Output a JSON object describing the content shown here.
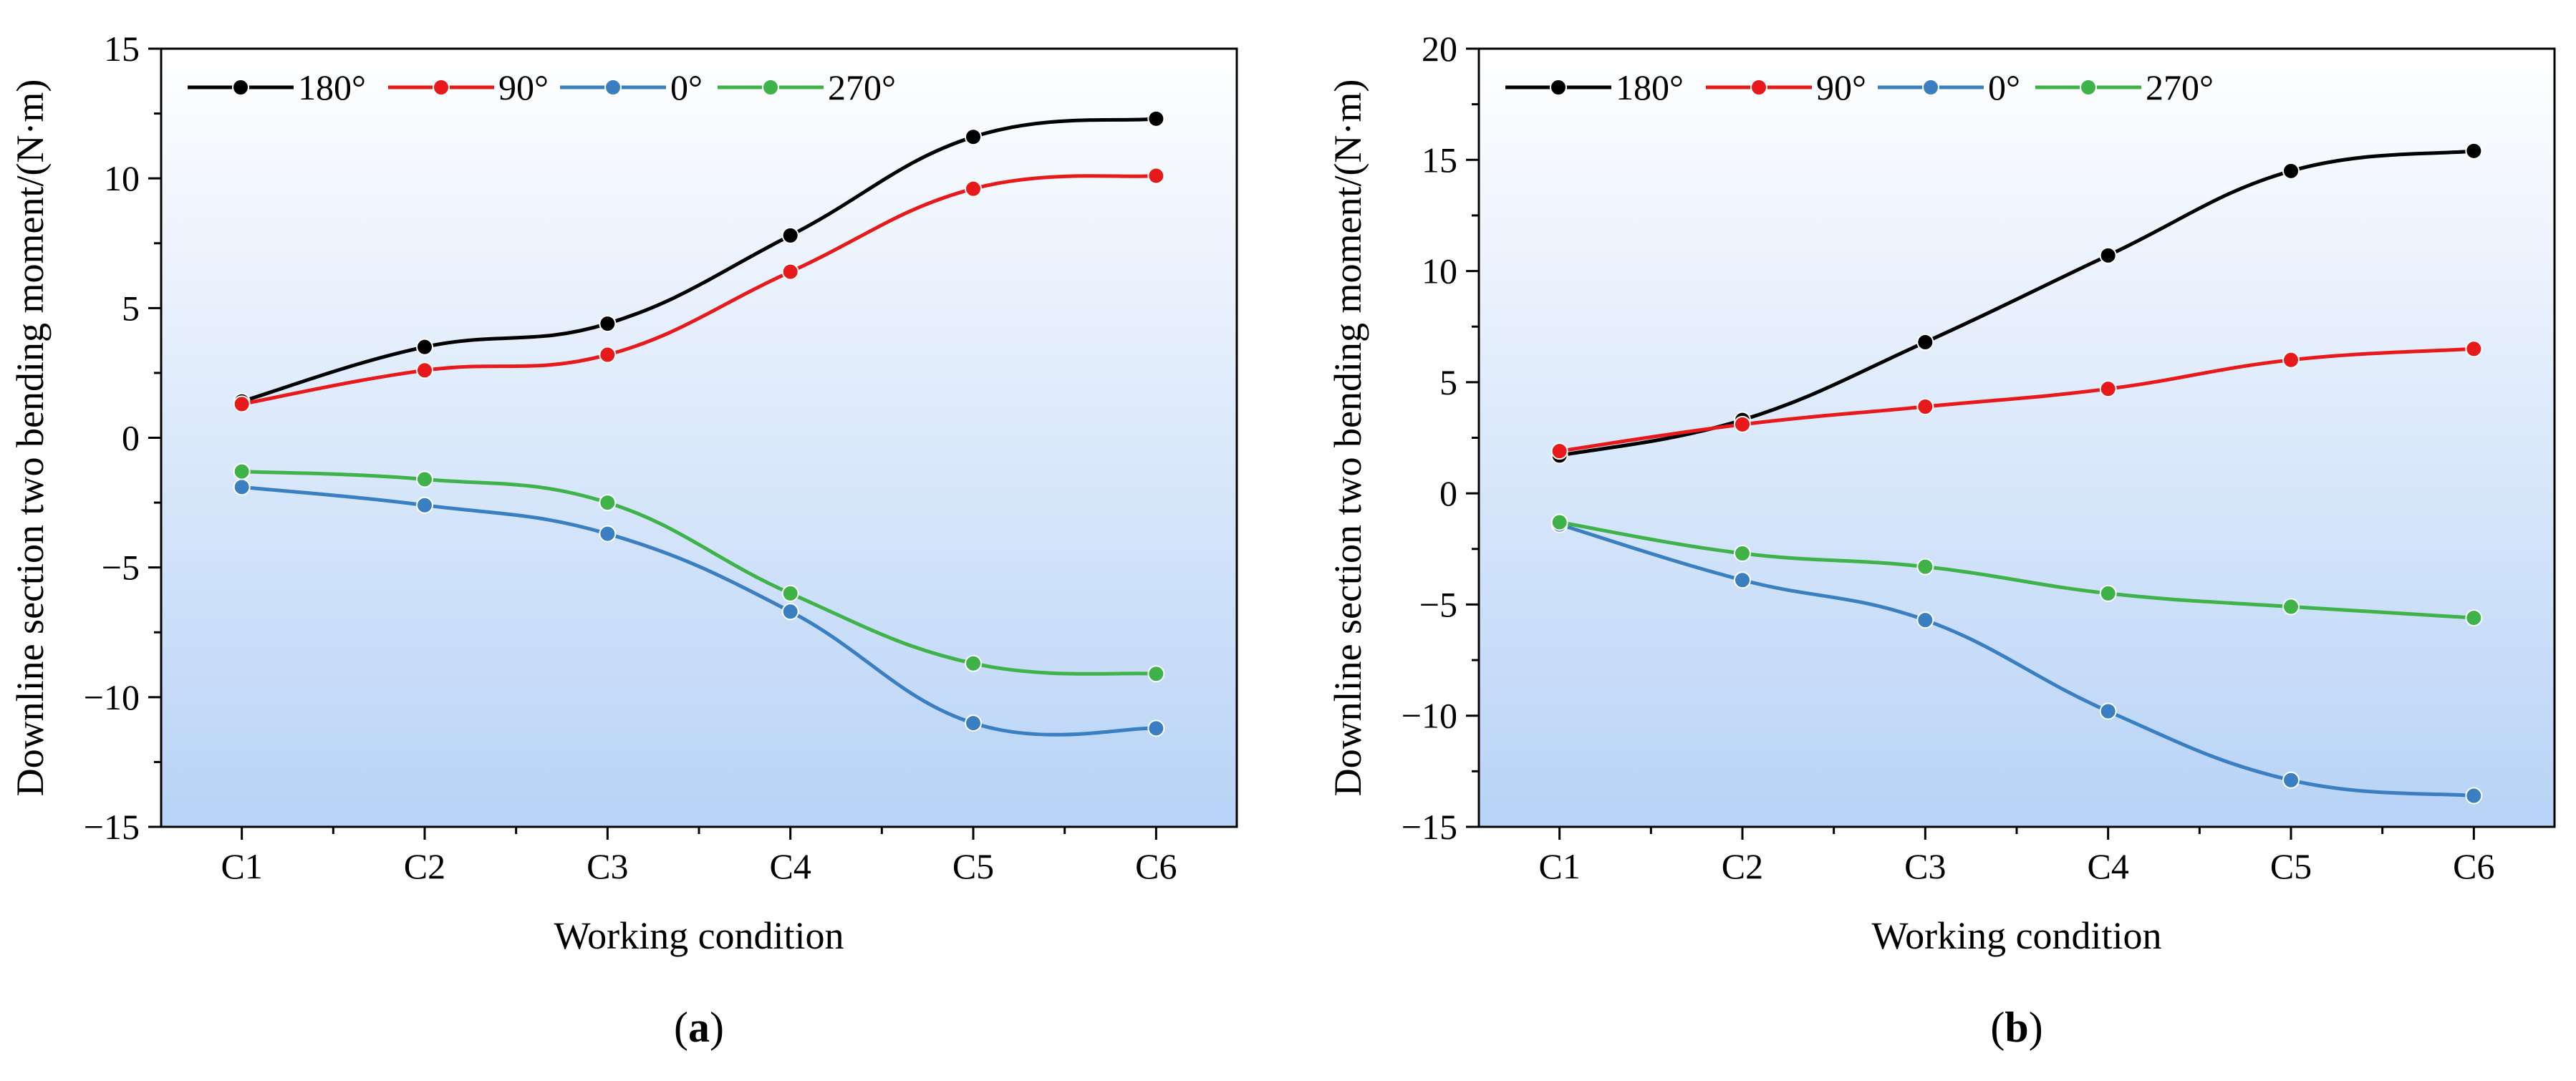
{
  "colors": {
    "s180": "#000000",
    "s90": "#e8191a",
    "s0": "#3a7fc1",
    "s270": "#3fb24a",
    "bg_top": "#ffffff",
    "bg_bottom": "#b8d3f7"
  },
  "chart_data": [
    {
      "type": "line",
      "panel_label": "a",
      "xlabel": "Working condition",
      "ylabel": "Downline section two bending moment/(N·m)",
      "categories": [
        "C1",
        "C2",
        "C3",
        "C4",
        "C5",
        "C6"
      ],
      "ylim": [
        -15,
        15
      ],
      "yticks": [
        -15,
        -10,
        -5,
        0,
        5,
        10,
        15
      ],
      "ytick_labels": [
        "−15",
        "−10",
        "−5",
        "0",
        "5",
        "10",
        "15"
      ],
      "legend_position": "top-left",
      "series": [
        {
          "name": "180°",
          "color_key": "s180",
          "values": [
            1.4,
            3.5,
            4.4,
            7.8,
            11.6,
            12.3
          ]
        },
        {
          "name": "90°",
          "color_key": "s90",
          "values": [
            1.3,
            2.6,
            3.2,
            6.4,
            9.6,
            10.1
          ]
        },
        {
          "name": "0°",
          "color_key": "s0",
          "values": [
            -1.9,
            -2.6,
            -3.7,
            -6.7,
            -11.0,
            -11.2
          ]
        },
        {
          "name": "270°",
          "color_key": "s270",
          "values": [
            -1.3,
            -1.6,
            -2.5,
            -6.0,
            -8.7,
            -9.1
          ]
        }
      ]
    },
    {
      "type": "line",
      "panel_label": "b",
      "xlabel": "Working condition",
      "ylabel": "Downline section two bending moment/(N·m)",
      "categories": [
        "C1",
        "C2",
        "C3",
        "C4",
        "C5",
        "C6"
      ],
      "ylim": [
        -15,
        20
      ],
      "yticks": [
        -15,
        -10,
        -5,
        0,
        5,
        10,
        15,
        20
      ],
      "ytick_labels": [
        "−15",
        "−10",
        "−5",
        "0",
        "5",
        "10",
        "15",
        "20"
      ],
      "legend_position": "top-left",
      "series": [
        {
          "name": "180°",
          "color_key": "s180",
          "values": [
            1.7,
            3.3,
            6.8,
            10.7,
            14.5,
            15.4
          ]
        },
        {
          "name": "90°",
          "color_key": "s90",
          "values": [
            1.9,
            3.1,
            3.9,
            4.7,
            6.0,
            6.5
          ]
        },
        {
          "name": "0°",
          "color_key": "s0",
          "values": [
            -1.4,
            -3.9,
            -5.7,
            -9.8,
            -12.9,
            -13.6
          ]
        },
        {
          "name": "270°",
          "color_key": "s270",
          "values": [
            -1.3,
            -2.7,
            -3.3,
            -4.5,
            -5.1,
            -5.6
          ]
        }
      ]
    }
  ]
}
